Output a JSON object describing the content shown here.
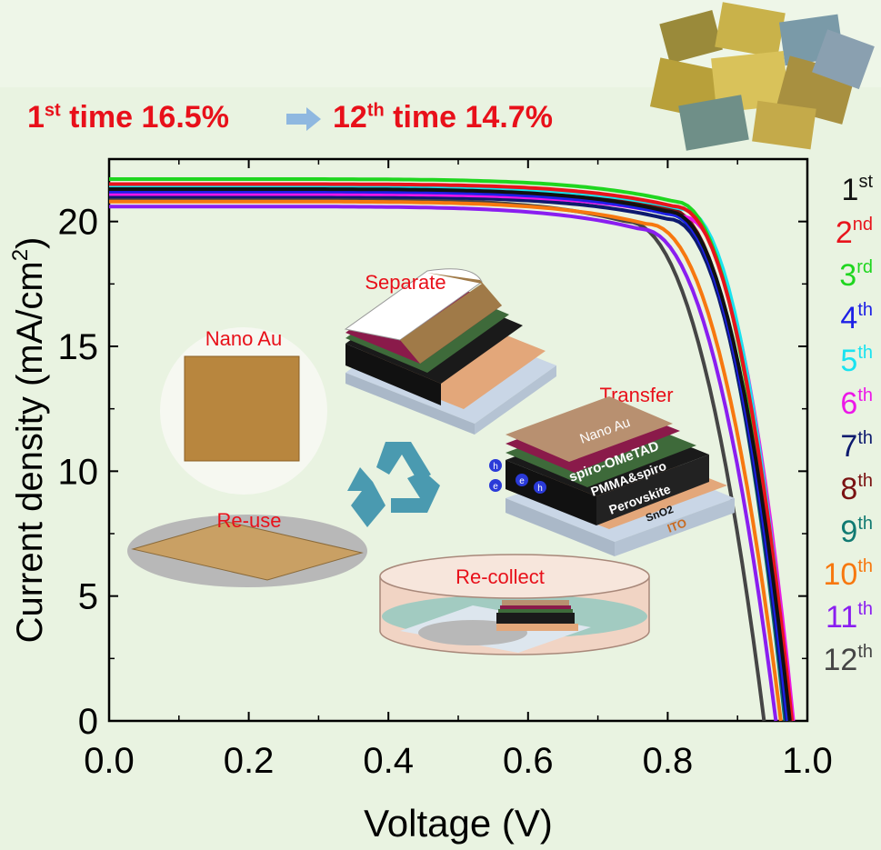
{
  "headline": {
    "first_prefix": "1",
    "first_sup": "st",
    "first_text": " time 16.5%",
    "second_prefix": "12",
    "second_sup": "th",
    "second_text": " time 14.7%"
  },
  "insets": {
    "nano_au": "Nano Au",
    "separate": "Separate",
    "transfer": "Transfer",
    "re_use": "Re-use",
    "re_collect": "Re-collect",
    "layers": [
      "Nano Au",
      "spiro-OMeTAD",
      "PMMA&spiro",
      "Perovskite",
      "SnO2",
      "ITO"
    ],
    "carriers": [
      "h",
      "e",
      "e",
      "h"
    ]
  },
  "chart_data": {
    "type": "line",
    "xlabel": "Voltage (V)",
    "ylabel": "Current density (mA/cm2)",
    "xlim": [
      0.0,
      1.0
    ],
    "ylim": [
      0,
      22.5
    ],
    "xticks": [
      "0.0",
      "0.2",
      "0.4",
      "0.6",
      "0.8",
      "1.0"
    ],
    "yticks": [
      "0",
      "5",
      "10",
      "15",
      "20"
    ],
    "legend_position": "right",
    "series": [
      {
        "name": "1st",
        "base": "1",
        "sup": "st",
        "color": "#111111",
        "jsc": 21.3,
        "voc": 0.975,
        "knee": 0.8
      },
      {
        "name": "2nd",
        "base": "2",
        "sup": "nd",
        "color": "#e8141c",
        "jsc": 21.5,
        "voc": 0.978,
        "knee": 0.81
      },
      {
        "name": "3rd",
        "base": "3",
        "sup": "rd",
        "color": "#1fd61f",
        "jsc": 21.7,
        "voc": 0.975,
        "knee": 0.81
      },
      {
        "name": "4th",
        "base": "4",
        "sup": "th",
        "color": "#1d20e6",
        "jsc": 21.2,
        "voc": 0.972,
        "knee": 0.8
      },
      {
        "name": "5th",
        "base": "5",
        "sup": "th",
        "color": "#19e3f0",
        "jsc": 21.4,
        "voc": 0.977,
        "knee": 0.82
      },
      {
        "name": "6th",
        "base": "6",
        "sup": "th",
        "color": "#ec17e8",
        "jsc": 21.1,
        "voc": 0.98,
        "knee": 0.82
      },
      {
        "name": "7th",
        "base": "7",
        "sup": "th",
        "color": "#0d1a6e",
        "jsc": 21.0,
        "voc": 0.97,
        "knee": 0.8
      },
      {
        "name": "8th",
        "base": "8",
        "sup": "th",
        "color": "#7a1212",
        "jsc": 21.4,
        "voc": 0.972,
        "knee": 0.8
      },
      {
        "name": "9th",
        "base": "9",
        "sup": "th",
        "color": "#117a72",
        "jsc": 21.2,
        "voc": 0.968,
        "knee": 0.8
      },
      {
        "name": "10th",
        "base": "10",
        "sup": "th",
        "color": "#f7780f",
        "jsc": 20.8,
        "voc": 0.962,
        "knee": 0.77
      },
      {
        "name": "11th",
        "base": "11",
        "sup": "th",
        "color": "#8a1ef0",
        "jsc": 20.6,
        "voc": 0.955,
        "knee": 0.76
      },
      {
        "name": "12th",
        "base": "12",
        "sup": "th",
        "color": "#454545",
        "jsc": 20.9,
        "voc": 0.938,
        "knee": 0.74
      }
    ]
  }
}
